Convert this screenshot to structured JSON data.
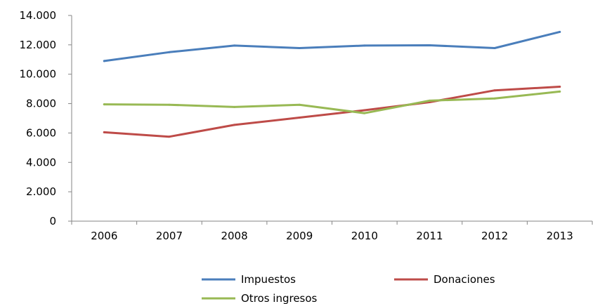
{
  "chart_data": {
    "type": "line",
    "categories": [
      "2006",
      "2007",
      "2008",
      "2009",
      "2010",
      "2011",
      "2012",
      "2013"
    ],
    "y_ticks": [
      "0",
      "2.000",
      "4.000",
      "6.000",
      "8.000",
      "10.000",
      "12.000",
      "14.000"
    ],
    "ylim": [
      0,
      14000
    ],
    "grid": false,
    "legend_position": "bottom",
    "series": [
      {
        "name": "Impuestos",
        "color": "#4a7ebb",
        "values": [
          10900,
          11500,
          11950,
          11780,
          11950,
          11970,
          11780,
          12880
        ]
      },
      {
        "name": "Donaciones",
        "color": "#be4b48",
        "values": [
          6050,
          5750,
          6550,
          7050,
          7550,
          8100,
          8900,
          9150
        ]
      },
      {
        "name": "Otros ingresos",
        "color": "#98b954",
        "values": [
          7950,
          7920,
          7770,
          7920,
          7350,
          8200,
          8350,
          8820
        ]
      }
    ]
  }
}
